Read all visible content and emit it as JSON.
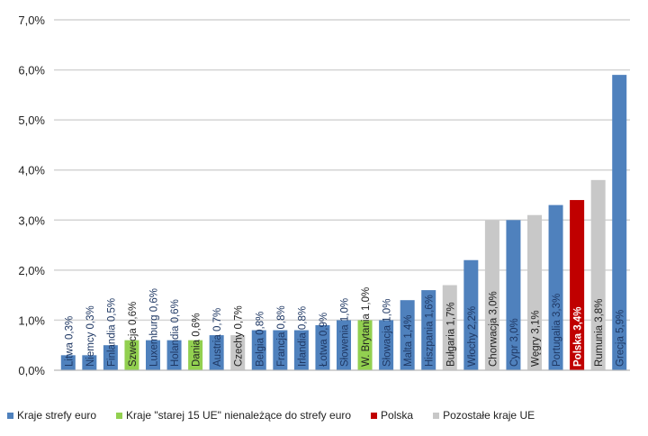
{
  "chart_data": {
    "type": "bar",
    "ylim": [
      0,
      7
    ],
    "yticks": [
      "0,0%",
      "1,0%",
      "2,0%",
      "3,0%",
      "4,0%",
      "5,0%",
      "6,0%",
      "7,0%"
    ],
    "grid": true,
    "legend_position": "bottom",
    "categories": [
      "Litwa",
      "Niemcy",
      "Finlandia",
      "Szwecja",
      "Luxemburg",
      "Holandia",
      "Dania",
      "Austria",
      "Czechy",
      "Belgia",
      "Francja",
      "Irlandia",
      "Łotwa",
      "Słowenia",
      "W. Brytania",
      "Słowacja",
      "Malta",
      "Hiszpania",
      "Bułgaria",
      "Włochy",
      "Chorwacja",
      "Cypr",
      "Węgry",
      "Portugalia",
      "Polska",
      "Rumunia",
      "Grecja"
    ],
    "values": [
      0.3,
      0.3,
      0.5,
      0.6,
      0.6,
      0.6,
      0.6,
      0.7,
      0.7,
      0.8,
      0.8,
      0.8,
      0.9,
      1.0,
      1.0,
      1.0,
      1.4,
      1.6,
      1.7,
      2.2,
      3.0,
      3.0,
      3.1,
      3.3,
      3.4,
      3.8,
      5.9
    ],
    "data_labels": [
      "Litwa 0,3%",
      "Niemcy 0,3%",
      "Finlandia 0,5%",
      "Szwecja 0,6%",
      "Luxemburg 0,6%",
      "Holandia 0,6%",
      "Dania 0,6%",
      "Austria 0,7%",
      "Czechy 0,7%",
      "Belgia 0,8%",
      "Francja 0,8%",
      "Irlandia 0,8%",
      "Łotwa 0,9%",
      "Słowenia 1,0%",
      "W. Brytania 1,0%",
      "Słowacja 1,0%",
      "Malta 1,4%",
      "Hiszpania 1,6%",
      "Bułgaria 1,7%",
      "Włochy 2,2%",
      "Chorwacja 3,0%",
      "Cypr 3,0%",
      "Węgry 3,1%",
      "Portugalia 3,3%",
      "Polska 3,4%",
      "Rumunia 3,8%",
      "Grecja 5,9%"
    ],
    "groups": [
      0,
      0,
      0,
      1,
      0,
      0,
      1,
      0,
      3,
      0,
      0,
      0,
      0,
      0,
      1,
      0,
      0,
      0,
      3,
      0,
      3,
      0,
      3,
      0,
      2,
      3,
      0
    ],
    "legend": [
      {
        "label": "Kraje strefy euro",
        "color": "#4f81bd"
      },
      {
        "label": "Kraje \"starej 15 UE\" nienależące do strefy euro",
        "color": "#92d050"
      },
      {
        "label": "Polska",
        "color": "#c00000"
      },
      {
        "label": "Pozostałe kraje UE",
        "color": "#c8c8c8"
      }
    ]
  }
}
